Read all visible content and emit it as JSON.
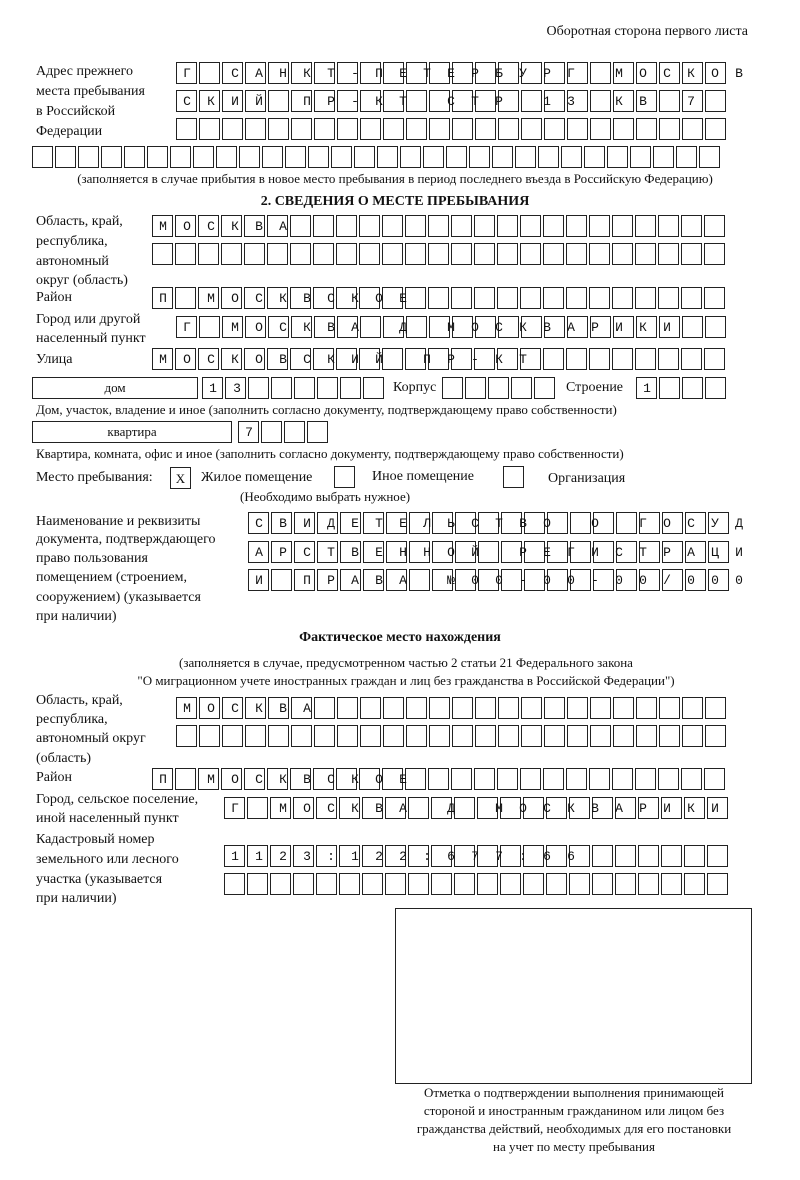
{
  "page_header": "Оборотная сторона первого листа",
  "previous_address": {
    "label": "Адрес прежнего места пребывания в Российской Федерации",
    "label_lines": [
      "Адрес прежнего",
      "места пребывания",
      "в Российской",
      "Федерации"
    ],
    "rows": [
      "Г САНКТ-ПЕТЕРБУРГ МОСКОВ",
      "СКИЙ ПР-КТ СТР 13 КВ 7  ",
      "                        ",
      "                              "
    ],
    "note": "(заполняется в случае прибытия в новое место пребывания в период последнего въезда в Российскую Федерацию)"
  },
  "section2": {
    "title": "2. СВЕДЕНИЯ О МЕСТЕ ПРЕБЫВАНИЯ",
    "region_label_lines": [
      "Область, край,",
      "республика,",
      "автономный",
      "округ (область)"
    ],
    "region_rows": [
      "МОСКВА                   ",
      "                         "
    ],
    "district_label": "Район",
    "district_row": "П МОСКВСКОЕ              ",
    "city_label_lines": [
      "Город или другой",
      "населенный пункт"
    ],
    "city_row": "Г МОСКВА Д МОСКВАРИКИ   ",
    "street_label": "Улица",
    "street_row": "МОСКОВСКИЙ ПР-КТ         ",
    "house_type": "дом",
    "house_row": "13      ",
    "building_label": "Корпус",
    "building_row": "     ",
    "structure_label": "Строение",
    "structure_row": "1   ",
    "house_note": "Дом, участок, владение и иное (заполнить согласно документу, подтверждающему право собственности)",
    "apartment_type": "квартира",
    "apartment_row": "7   ",
    "apartment_note": "Квартира, комната, офис и иное (заполнить согласно документу, подтверждающему право собственности)",
    "stay_place_label": "Место пребывания:",
    "options": [
      {
        "label": "Жилое помещение",
        "mark": "X",
        "checked": true
      },
      {
        "label": "Иное помещение",
        "mark": "",
        "checked": false
      },
      {
        "label": "Организация",
        "mark": "",
        "checked": false
      }
    ],
    "options_note": "(Необходимо выбрать нужное)",
    "document_label_lines": [
      "Наименование и реквизиты",
      "документа, подтверждающего",
      "право пользования",
      "помещением (строением,",
      "сооружением) (указывается",
      "при наличии)"
    ],
    "document_rows": [
      "СВИДЕТЕЛЬСТВО О ГОСУД",
      "АРСТВЕННОЙ РЕГИСТРАЦИ",
      "И ПРАВА №00-00-00/000"
    ]
  },
  "actual_location": {
    "title": "Фактическое место нахождения",
    "note_lines": [
      "(заполняется в случае, предусмотренном частью 2 статьи 21 Федерального закона",
      "\"О миграционном учете иностранных граждан и лиц без гражданства в Российской Федерации\")"
    ],
    "region_label_lines": [
      "Область, край,",
      "республика,",
      "автономный округ",
      "(область)"
    ],
    "region_rows": [
      "МОСКВА                  ",
      "                        "
    ],
    "district_label": "Район",
    "district_row": "П МОСКВСКОЕ              ",
    "city_label_lines": [
      "Город, сельское поселение,",
      "иной населенный пункт"
    ],
    "city_row": "Г МОСКВА Д МОСКВАРИКИ ",
    "cadastral_label_lines": [
      "Кадастровый номер",
      "земельного или лесного",
      "участка (указывается",
      "при наличии)"
    ],
    "cadastral_rows": [
      "1123:122:677:66       ",
      "                      "
    ]
  },
  "confirmation": {
    "caption_lines": [
      "Отметка о подтверждении выполнения принимающей",
      "стороной и иностранным гражданином или лицом без",
      "гражданства действий, необходимых для его постановки",
      "на учет по месту пребывания"
    ]
  }
}
